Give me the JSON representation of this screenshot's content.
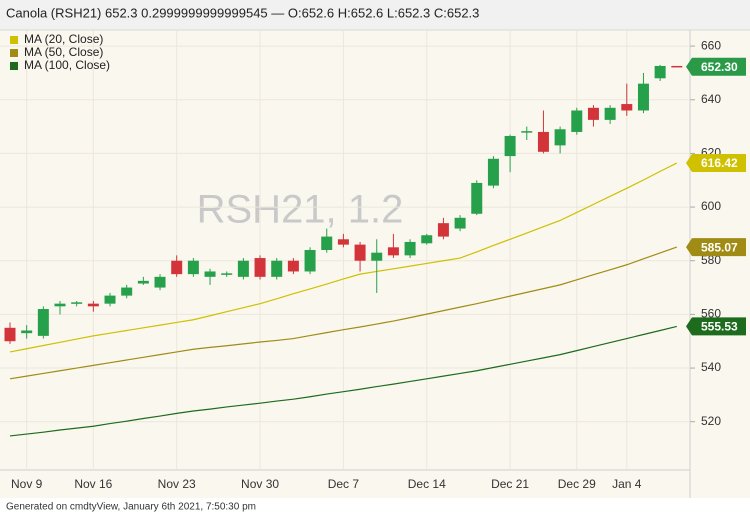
{
  "chart_data": {
    "type": "candlestick",
    "title": "Canola (RSH21) 652.3 0.2999999999999545 — O:652.6 H:652.6 L:652.3 C:652.3",
    "watermark": "RSH21, 1.2",
    "footer": "Generated on cmdtyView, January 6th 2021, 7:50:30 pm",
    "categories": [
      null,
      "Nov 9",
      null,
      null,
      null,
      "Nov 16",
      null,
      null,
      null,
      null,
      "Nov 23",
      null,
      null,
      null,
      null,
      "Nov 30",
      null,
      null,
      null,
      null,
      "Dec 7",
      null,
      null,
      null,
      null,
      "Dec 14",
      null,
      null,
      null,
      null,
      "Dec 21",
      null,
      null,
      null,
      "Dec 29",
      null,
      null,
      "Jan 4",
      null,
      null,
      null
    ],
    "open": [
      555,
      553,
      552,
      563,
      564,
      564,
      564,
      567,
      571.5,
      570,
      580,
      575,
      574,
      575,
      574,
      581,
      574,
      580,
      576,
      584,
      588,
      586,
      580,
      585,
      582,
      586.5,
      594,
      592,
      597.5,
      608,
      619,
      628,
      628,
      623,
      628,
      637,
      632.5,
      638.4,
      636,
      648,
      652.6
    ],
    "high": [
      557,
      556,
      563,
      565,
      565,
      565,
      568,
      571,
      574,
      575,
      582,
      581,
      577,
      576,
      581,
      582,
      581,
      581,
      585,
      592,
      590,
      587,
      588,
      590,
      588,
      590,
      596,
      597,
      610,
      619,
      627,
      630,
      636,
      630,
      637,
      638,
      638,
      646,
      650,
      653,
      652.6
    ],
    "low": [
      549,
      551,
      551,
      560,
      563,
      561,
      563,
      566,
      571,
      569,
      574,
      574,
      571,
      574,
      573,
      573,
      573,
      575,
      575,
      583,
      585,
      576,
      568,
      581,
      581,
      586,
      588,
      591,
      597,
      607,
      613,
      625,
      620,
      620,
      627,
      630,
      631,
      634,
      635,
      647,
      652.3
    ],
    "close": [
      550,
      554,
      562,
      564,
      564.5,
      563,
      567,
      570,
      572.5,
      574,
      575,
      580,
      576,
      575.3,
      580,
      574,
      580,
      576,
      584,
      589,
      586,
      580,
      583,
      582,
      587,
      589.5,
      589,
      596,
      609,
      618,
      626.5,
      628.3,
      620.6,
      629,
      636,
      632.5,
      637,
      636,
      646,
      652.6,
      652.3
    ],
    "up_color": "#26a04a",
    "down_color": "#d2343a",
    "price_label": {
      "value": 652.3,
      "label": "652.30"
    },
    "price_color": "#2a9a48",
    "series": [
      {
        "name": "MA (20, Close)",
        "color": "#cfc000",
        "last_value": 616.42,
        "values": [
          546,
          547.2,
          548.4,
          549.6,
          550.8,
          552,
          553,
          554,
          555,
          556,
          557,
          558,
          559.5,
          561,
          562.5,
          564,
          565.8,
          567.7,
          569.5,
          571.3,
          573.2,
          575,
          576,
          577,
          578,
          579,
          580,
          581,
          583.3,
          585.7,
          588,
          590.3,
          592.7,
          595,
          598,
          601,
          604,
          607,
          610.1,
          613.3,
          616.4
        ]
      },
      {
        "name": "MA (50, Close)",
        "color": "#a08c14",
        "last_value": 585.07,
        "values": [
          536,
          537,
          538,
          539,
          540,
          541,
          542,
          543,
          544,
          545,
          546,
          547,
          547.7,
          548.3,
          549,
          549.7,
          550.3,
          551,
          552.1,
          553.2,
          554.3,
          555.3,
          556.4,
          557.5,
          558.8,
          560.1,
          561.4,
          562.7,
          564,
          565.4,
          566.8,
          568.2,
          569.6,
          571,
          572.9,
          574.8,
          576.6,
          578.5,
          580.7,
          582.9,
          585.1
        ]
      },
      {
        "name": "MA (100, Close)",
        "color": "#1d6b1d",
        "last_value": 555.53,
        "values": [
          514.7,
          515.4,
          516.1,
          516.9,
          517.6,
          518.3,
          519.3,
          520.2,
          521.2,
          522.1,
          523.1,
          524,
          524.7,
          525.5,
          526.2,
          526.9,
          527.7,
          528.4,
          529.3,
          530.3,
          531.2,
          532.1,
          533.1,
          534,
          535,
          536,
          537,
          538,
          539,
          540.2,
          541.4,
          542.6,
          543.8,
          545,
          546.5,
          548,
          549.5,
          551,
          552.5,
          554,
          555.5
        ]
      }
    ],
    "ylim": [
      502,
      666
    ],
    "yticks": [
      520,
      540,
      560,
      580,
      600,
      620,
      640,
      660
    ],
    "grid": true
  }
}
